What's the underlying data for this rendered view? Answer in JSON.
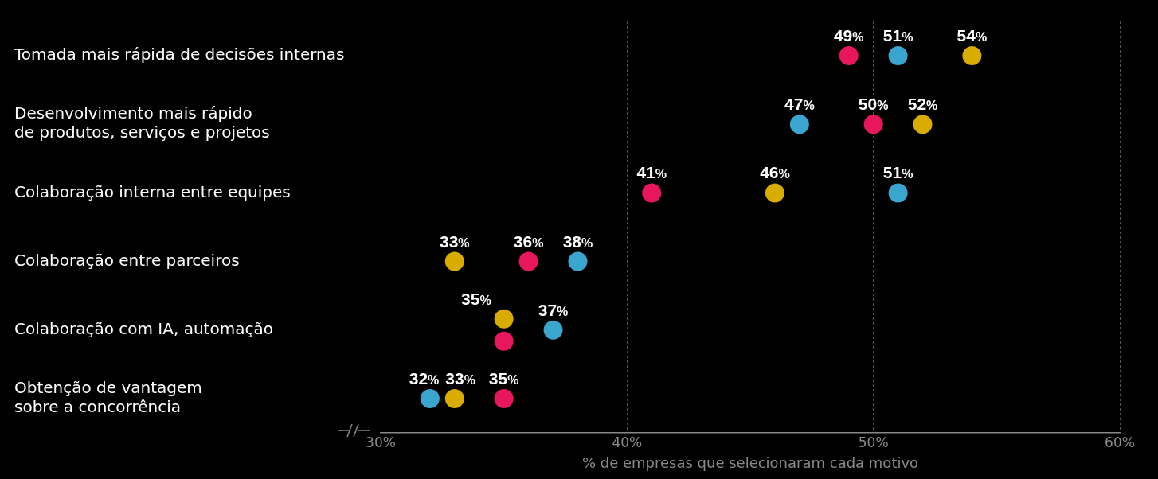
{
  "chart_data": {
    "type": "scatter",
    "orientation": "horizontal",
    "categories": [
      "Tomada mais rápida de decisões internas",
      "Desenvolvimento mais rápido\nde produtos, serviços e projetos",
      "Colaboração interna entre equipes",
      "Colaboração entre parceiros",
      "Colaboração com IA, automação",
      "Obtenção de vantagem\nsobre a concorrência"
    ],
    "series": [
      {
        "color": "#e8175d",
        "values": [
          49,
          50,
          41,
          36,
          35,
          35
        ],
        "value_labels": [
          "49%",
          "50%",
          "41%",
          "36%",
          null,
          "35%"
        ]
      },
      {
        "color": "#3aa6d0",
        "values": [
          51,
          47,
          51,
          38,
          37,
          32
        ],
        "value_labels": [
          "51%",
          "47%",
          "51%",
          "38%",
          "37%",
          "32%"
        ]
      },
      {
        "color": "#d8ac00",
        "values": [
          54,
          52,
          46,
          33,
          35,
          33
        ],
        "value_labels": [
          "54%",
          "52%",
          "46%",
          "33%",
          "35%",
          "33%"
        ]
      }
    ],
    "xlim": [
      30,
      60
    ],
    "xticks": [
      {
        "value": 30,
        "label": "30%"
      },
      {
        "value": 40,
        "label": "40%"
      },
      {
        "value": 50,
        "label": "50%"
      },
      {
        "value": 60,
        "label": "60%"
      }
    ],
    "xlabel": "% de empresas que selecionaram cada motivo",
    "grid": "x",
    "legend": false,
    "marker": "circle"
  }
}
